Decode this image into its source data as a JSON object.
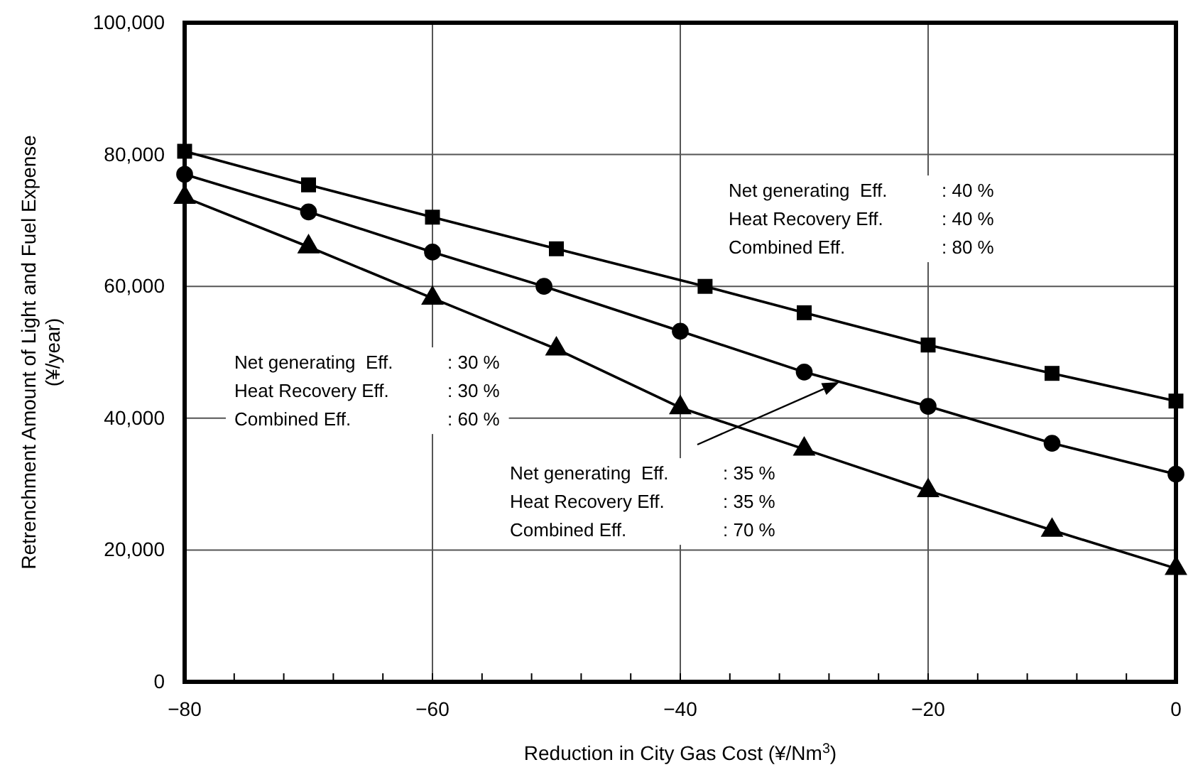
{
  "chart_data": {
    "type": "line",
    "xlabel": "Reduction in City Gas Cost (¥/Nm$^{3}$)",
    "ylabel": "Retrenchment Amount of Light and Fuel Expense\n(¥/year)",
    "xlim": [
      -80,
      0
    ],
    "ylim": [
      0,
      100000
    ],
    "xticks": [
      {
        "value": -80,
        "label": "−80"
      },
      {
        "value": -76,
        "label": null
      },
      {
        "value": -72,
        "label": null
      },
      {
        "value": -68,
        "label": null
      },
      {
        "value": -64,
        "label": null
      },
      {
        "value": -60,
        "label": "−60"
      },
      {
        "value": -56,
        "label": null
      },
      {
        "value": -52,
        "label": null
      },
      {
        "value": -48,
        "label": null
      },
      {
        "value": -44,
        "label": null
      },
      {
        "value": -40,
        "label": "−40"
      },
      {
        "value": -36,
        "label": null
      },
      {
        "value": -32,
        "label": null
      },
      {
        "value": -28,
        "label": null
      },
      {
        "value": -24,
        "label": null
      },
      {
        "value": -20,
        "label": "−20"
      },
      {
        "value": -16,
        "label": null
      },
      {
        "value": -12,
        "label": null
      },
      {
        "value": -8,
        "label": null
      },
      {
        "value": -4,
        "label": null
      },
      {
        "value": 0,
        "label": "0"
      }
    ],
    "yticks": [
      {
        "value": 0,
        "label": "0"
      },
      {
        "value": 20000,
        "label": "20,000"
      },
      {
        "value": 40000,
        "label": "40,000"
      },
      {
        "value": 60000,
        "label": "60,000"
      },
      {
        "value": 80000,
        "label": "80,000"
      },
      {
        "value": 100000,
        "label": "100,000"
      }
    ],
    "grid": true,
    "line_style": "solid",
    "series": [
      {
        "color": "#000000",
        "marker": "square",
        "x": [
          -80,
          -70,
          -60,
          -50,
          -38,
          -30,
          -20,
          -10,
          0
        ],
        "values": [
          80500,
          75400,
          70500,
          65700,
          60000,
          56000,
          51100,
          46800,
          42600
        ]
      },
      {
        "color": "#000000",
        "marker": "circle",
        "x": [
          -80,
          -70,
          -60,
          -51,
          -40,
          -30,
          -20,
          -10,
          0
        ],
        "values": [
          77000,
          71300,
          65200,
          60000,
          53200,
          47000,
          41800,
          36200,
          31500
        ]
      },
      {
        "color": "#000000",
        "marker": "triangle",
        "x": [
          -80,
          -70,
          -60,
          -50,
          -40,
          -30,
          -20,
          -10,
          0
        ],
        "values": [
          73500,
          66000,
          58200,
          50500,
          41600,
          35300,
          29000,
          23000,
          17200
        ]
      }
    ],
    "annotations": [
      "Net generating  Eff. : 40 %",
      "Heat Recovery Eff. : 40 %",
      "Combined Eff. : 80 %",
      "Net generating  Eff. : 30 %",
      "Heat Recovery Eff. : 30 %",
      "Combined Eff. : 60 %",
      "Net generating  Eff. : 35 %",
      "Heat Recovery Eff. : 35 %",
      "Combined Eff. : 70 %"
    ]
  }
}
